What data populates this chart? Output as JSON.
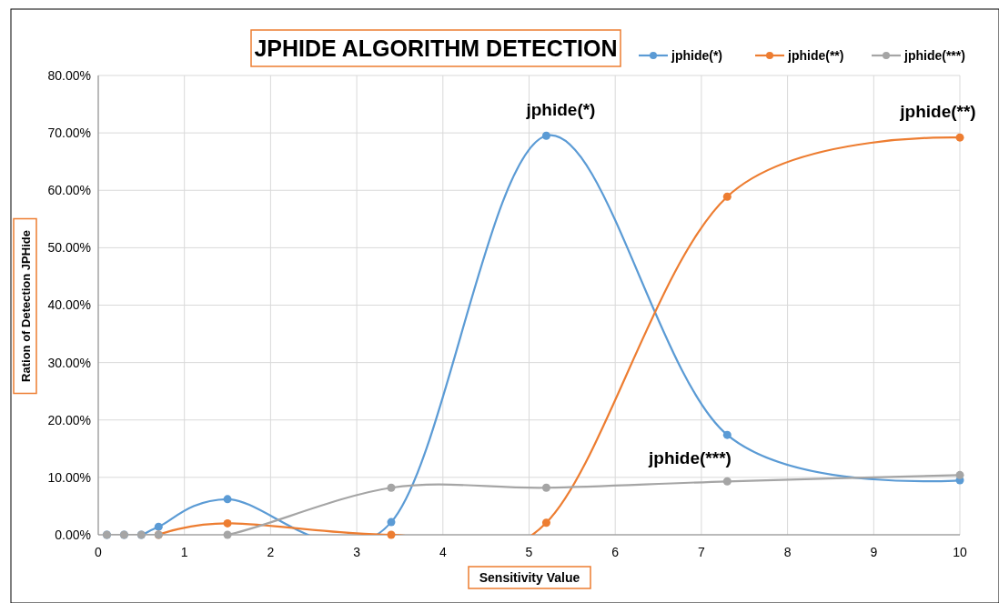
{
  "chart_data": {
    "type": "line",
    "title": "JPHIDE  ALGORITHM DETECTION",
    "xlabel": "Sensitivity Value",
    "ylabel": "Ration of Detection JPHide",
    "x": [
      0.1,
      0.3,
      0.5,
      0.7,
      1.5,
      3.4,
      5.2,
      7.3,
      10
    ],
    "series": [
      {
        "name": "jphide(*)",
        "color": "#5b9bd5",
        "values": [
          0,
          0,
          0,
          1.4,
          6.2,
          2.2,
          69.5,
          17.4,
          9.5
        ]
      },
      {
        "name": "jphide(**)",
        "color": "#ed7d31",
        "values": [
          null,
          null,
          null,
          0,
          2.0,
          0,
          2.1,
          58.9,
          69.2
        ]
      },
      {
        "name": "jphide(***)",
        "color": "#a5a5a5",
        "values": [
          0,
          0,
          0,
          0,
          0,
          8.2,
          8.2,
          9.3,
          10.4
        ]
      }
    ],
    "xlim": [
      0,
      10
    ],
    "xticks": [
      0,
      1,
      2,
      3,
      4,
      5,
      6,
      7,
      8,
      9,
      10
    ],
    "ylim": [
      0,
      80
    ],
    "yticks": [
      {
        "value": 0,
        "label": "0.00%"
      },
      {
        "value": 10,
        "label": "10.00%"
      },
      {
        "value": 20,
        "label": "20.00%"
      },
      {
        "value": 30,
        "label": "30.00%"
      },
      {
        "value": 40,
        "label": "40.00%"
      },
      {
        "value": 50,
        "label": "50.00%"
      },
      {
        "value": 60,
        "label": "60.00%"
      },
      {
        "value": 70,
        "label": "70.00%"
      },
      {
        "value": 80,
        "label": "80.00%"
      }
    ],
    "annotations": [
      {
        "text": "jphide(*)",
        "x": 5.2,
        "y": 69.5
      },
      {
        "text": "jphide(**)",
        "x": 10,
        "y": 69.2
      },
      {
        "text": "jphide(***)",
        "x": 6.7,
        "y": 8.9
      }
    ],
    "grid": true,
    "legend": "top right",
    "marker": "circle",
    "line_style": "solid"
  }
}
